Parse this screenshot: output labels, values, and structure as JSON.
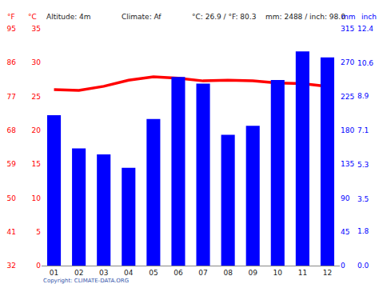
{
  "chart_data": {
    "type": "bar",
    "categories": [
      "01",
      "02",
      "03",
      "04",
      "05",
      "06",
      "07",
      "08",
      "09",
      "10",
      "11",
      "12"
    ],
    "series": [
      {
        "type": "bar",
        "color": "#0000ff",
        "axis": "y2",
        "values": [
          200,
          156,
          148,
          130,
          195,
          251,
          242,
          174,
          186,
          247,
          285,
          277
        ]
      },
      {
        "type": "line",
        "color": "#ff0000",
        "values": [
          26.0,
          25.9,
          26.5,
          27.4,
          27.9,
          27.7,
          27.3,
          27.4,
          27.3,
          27.0,
          26.9,
          26.5
        ]
      }
    ],
    "ylabel": "°C",
    "ylim": [
      0,
      35
    ],
    "yticks": [
      0,
      5,
      10,
      15,
      20,
      25,
      30,
      35
    ],
    "y2label": "mm",
    "y2lim": [
      0,
      315
    ],
    "y2ticks": [
      0,
      45,
      90,
      135,
      180,
      225,
      270,
      315
    ],
    "y3label": "°F",
    "y3lim": [
      32,
      95
    ],
    "y3ticks": [
      32,
      41,
      50,
      59,
      68,
      77,
      86,
      95
    ],
    "y4label": "inch",
    "y4lim": [
      0,
      12.4
    ],
    "y4ticks": [
      {
        "value": 0,
        "label": "0.0"
      },
      1.8,
      3.5,
      5.3,
      7.1,
      8.9,
      10.6,
      12.4
    ],
    "annotations": [
      "Altitude: 4m",
      "Climate: Af",
      "°C: 26.9 / °F: 80.3",
      "mm: 2488 / inch: 98.0",
      "Copyright: CLIMATE-DATA.ORG"
    ],
    "grid": false
  }
}
